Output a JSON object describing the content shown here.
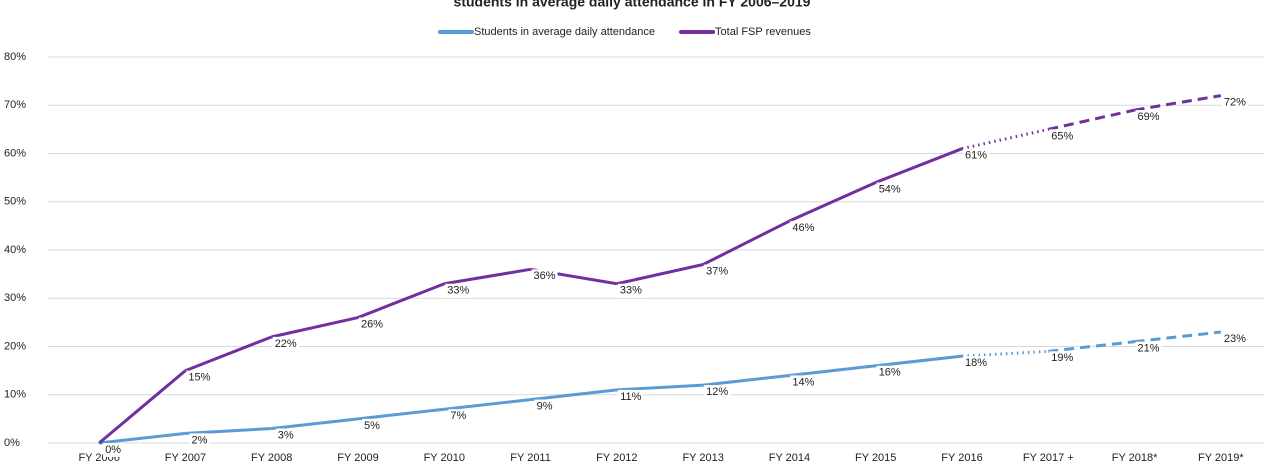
{
  "chart_data": {
    "type": "line",
    "title": "students in average daily attendance in FY 2006–2019",
    "categories": [
      "FY 2006",
      "FY 2007",
      "FY 2008",
      "FY 2009",
      "FY 2010",
      "FY 2011",
      "FY 2012",
      "FY 2013",
      "FY 2014",
      "FY 2015",
      "FY 2016",
      "FY 2017 +",
      "FY 2018*",
      "FY 2019*"
    ],
    "series": [
      {
        "name": "Students in average daily attendance",
        "color": "#5b9bd5",
        "values": [
          0,
          2,
          3,
          5,
          7,
          9,
          11,
          12,
          14,
          16,
          18,
          19,
          21,
          23
        ],
        "value_labels": [
          "0%",
          "2%",
          "3%",
          "5%",
          "7%",
          "9%",
          "11%",
          "12%",
          "14%",
          "16%",
          "18%",
          "19%",
          "21%",
          "23%"
        ]
      },
      {
        "name": "Total FSP revenues",
        "color": "#7030a0",
        "values": [
          0,
          15,
          22,
          26,
          33,
          36,
          33,
          37,
          46,
          54,
          61,
          65,
          69,
          72
        ],
        "value_labels": [
          "0%",
          "15%",
          "22%",
          "26%",
          "33%",
          "36%",
          "33%",
          "37%",
          "46%",
          "54%",
          "61%",
          "65%",
          "69%",
          "72%"
        ]
      }
    ],
    "segment_styles": [
      "solid",
      "solid",
      "solid",
      "solid",
      "solid",
      "solid",
      "solid",
      "solid",
      "solid",
      "solid",
      "dotted",
      "dashed",
      "dashed"
    ],
    "ylim": [
      0,
      80
    ],
    "yticks": [
      {
        "value": 0,
        "label": "0%"
      },
      {
        "value": 10,
        "label": "10%"
      },
      {
        "value": 20,
        "label": "20%"
      },
      {
        "value": 30,
        "label": "30%"
      },
      {
        "value": 40,
        "label": "40%"
      },
      {
        "value": 50,
        "label": "50%"
      },
      {
        "value": 60,
        "label": "60%"
      },
      {
        "value": 70,
        "label": "70%"
      },
      {
        "value": 80,
        "label": "80%"
      }
    ],
    "grid": true,
    "legend": "top"
  }
}
